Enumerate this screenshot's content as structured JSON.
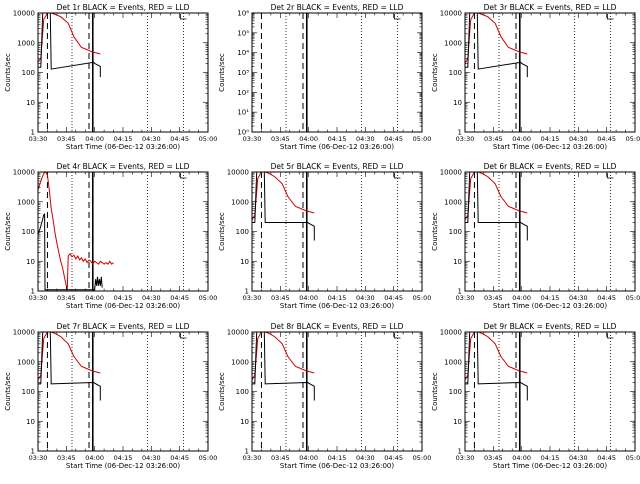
{
  "chart_data": {
    "type": "line",
    "layout": "3x3 grid",
    "x_tick_labels": [
      "03:30",
      "03:45",
      "04:00",
      "04:15",
      "04:30",
      "04:45",
      "05:00"
    ],
    "x_tick_minutes": [
      0,
      15,
      30,
      45,
      60,
      75,
      90
    ],
    "xlim_minutes": [
      0,
      90
    ],
    "xlabel": "Start Time (06-Dec-12 03:26:00)",
    "ylabel": "Counts/sec",
    "scale": "log",
    "series_colors": {
      "events": "#000000",
      "lld": "#cc0000"
    },
    "vlines": {
      "dashed": [
        5,
        27
      ],
      "dotted": [
        18,
        58,
        77
      ],
      "solid": [
        29
      ]
    },
    "panels": [
      {
        "title": "Det 1r BLACK = Events, RED = LLD",
        "ylim": [
          1,
          10000
        ],
        "y_tick_labels": [
          "1",
          "10",
          "100",
          "1000",
          "10000"
        ],
        "y_tick_values": [
          1,
          10,
          100,
          1000,
          10000
        ],
        "events": [
          [
            0,
            150
          ],
          [
            1.5,
            150
          ],
          [
            2.5,
            10000
          ],
          [
            3.5,
            10000
          ],
          [
            6.5,
            10000
          ],
          [
            7,
            130
          ],
          [
            29.5,
            220
          ],
          [
            30,
            200
          ],
          [
            33,
            160
          ],
          [
            33,
            70
          ]
        ],
        "lld": [
          [
            0,
            220
          ],
          [
            1.5,
            300
          ],
          [
            3,
            6000
          ],
          [
            5,
            10000
          ],
          [
            7,
            10000
          ],
          [
            9,
            9000
          ],
          [
            12,
            7500
          ],
          [
            16,
            4500
          ],
          [
            19,
            1600
          ],
          [
            23,
            700
          ],
          [
            27,
            550
          ],
          [
            29,
            480
          ],
          [
            30,
            470
          ],
          [
            33,
            420
          ]
        ]
      },
      {
        "title": "Det 2r BLACK = Events, RED = LLD",
        "ylim": [
          1,
          1000000
        ],
        "y_tick_labels": [
          "10⁰",
          "10¹",
          "10²",
          "10³",
          "10⁴",
          "10⁵",
          "10⁶"
        ],
        "y_tick_values": [
          1,
          10,
          100,
          1000,
          10000,
          100000,
          1000000
        ],
        "events": [],
        "lld": []
      },
      {
        "title": "Det 3r BLACK = Events, RED = LLD",
        "ylim": [
          1,
          10000
        ],
        "y_tick_labels": [
          "1",
          "10",
          "100",
          "1000",
          "10000"
        ],
        "y_tick_values": [
          1,
          10,
          100,
          1000,
          10000
        ],
        "events": [
          [
            0,
            150
          ],
          [
            1.5,
            150
          ],
          [
            2.5,
            10000
          ],
          [
            3.5,
            10000
          ],
          [
            6.5,
            10000
          ],
          [
            7,
            130
          ],
          [
            29.5,
            220
          ],
          [
            30,
            200
          ],
          [
            33,
            160
          ],
          [
            33,
            70
          ]
        ],
        "lld": [
          [
            0,
            200
          ],
          [
            1.5,
            300
          ],
          [
            3,
            6000
          ],
          [
            5,
            10000
          ],
          [
            7,
            10000
          ],
          [
            9,
            9000
          ],
          [
            12,
            7500
          ],
          [
            16,
            4500
          ],
          [
            19,
            1600
          ],
          [
            23,
            700
          ],
          [
            27,
            550
          ],
          [
            29,
            480
          ],
          [
            30,
            470
          ],
          [
            33,
            420
          ]
        ]
      },
      {
        "title": "Det 4r BLACK = Events, RED = LLD",
        "ylim": [
          1,
          10000
        ],
        "y_tick_labels": [
          "1",
          "10",
          "100",
          "1000",
          "10000"
        ],
        "y_tick_values": [
          1,
          10,
          100,
          1000,
          10000
        ],
        "events": [
          [
            0,
            80
          ],
          [
            1,
            120
          ],
          [
            2,
            200
          ],
          [
            3,
            350
          ],
          [
            3.5,
            400
          ],
          [
            3.7,
            1.1
          ],
          [
            30,
            1.1
          ],
          [
            30.5,
            2.5
          ],
          [
            31,
            1.5
          ],
          [
            31.5,
            3
          ],
          [
            32,
            1.5
          ],
          [
            32.5,
            2.5
          ],
          [
            33,
            1.5
          ],
          [
            33.5,
            3
          ],
          [
            34,
            1.3
          ]
        ],
        "lld": [
          [
            0,
            2500
          ],
          [
            1,
            4000
          ],
          [
            2,
            6000
          ],
          [
            3,
            9000
          ],
          [
            4,
            10000
          ],
          [
            5,
            8000
          ],
          [
            6,
            2500
          ],
          [
            7,
            600
          ],
          [
            8,
            250
          ],
          [
            9,
            90
          ],
          [
            10,
            40
          ],
          [
            11,
            20
          ],
          [
            12,
            10
          ],
          [
            13,
            6
          ],
          [
            14,
            3
          ],
          [
            15,
            1.5
          ],
          [
            15.5,
            1.1
          ],
          [
            16,
            15
          ],
          [
            17,
            18
          ],
          [
            18,
            14
          ],
          [
            19,
            16
          ],
          [
            20,
            12
          ],
          [
            21,
            15
          ],
          [
            22,
            11
          ],
          [
            23,
            13
          ],
          [
            24,
            10
          ],
          [
            25,
            12
          ],
          [
            26,
            9
          ],
          [
            27,
            11
          ],
          [
            28,
            10
          ],
          [
            29,
            8
          ],
          [
            30,
            10
          ],
          [
            31,
            9
          ],
          [
            32,
            8
          ],
          [
            33,
            10
          ],
          [
            34,
            9
          ],
          [
            35,
            8
          ],
          [
            36,
            9
          ],
          [
            37,
            8
          ],
          [
            38,
            10
          ],
          [
            39,
            8
          ],
          [
            40,
            9
          ]
        ]
      },
      {
        "title": "Det 5r BLACK = Events, RED = LLD",
        "ylim": [
          1,
          10000
        ],
        "y_tick_labels": [
          "1",
          "10",
          "100",
          "1000",
          "10000"
        ],
        "y_tick_values": [
          1,
          10,
          100,
          1000,
          10000
        ],
        "events": [
          [
            0,
            200
          ],
          [
            1.5,
            200
          ],
          [
            2.5,
            10000
          ],
          [
            3.5,
            10000
          ],
          [
            6.5,
            10000
          ],
          [
            7,
            200
          ],
          [
            29.5,
            200
          ],
          [
            30,
            190
          ],
          [
            33,
            150
          ],
          [
            33,
            50
          ]
        ],
        "lld": [
          [
            0,
            250
          ],
          [
            1.5,
            350
          ],
          [
            3,
            6000
          ],
          [
            5,
            10000
          ],
          [
            7,
            10000
          ],
          [
            9,
            9000
          ],
          [
            12,
            7000
          ],
          [
            16,
            4000
          ],
          [
            19,
            1500
          ],
          [
            23,
            700
          ],
          [
            27,
            550
          ],
          [
            29,
            480
          ],
          [
            30,
            470
          ],
          [
            33,
            420
          ]
        ]
      },
      {
        "title": "Det 6r BLACK = Events, RED = LLD",
        "ylim": [
          1,
          10000
        ],
        "y_tick_labels": [
          "1",
          "10",
          "100",
          "1000",
          "10000"
        ],
        "y_tick_values": [
          1,
          10,
          100,
          1000,
          10000
        ],
        "events": [
          [
            0,
            200
          ],
          [
            1.5,
            200
          ],
          [
            2.5,
            10000
          ],
          [
            3.5,
            10000
          ],
          [
            6.5,
            10000
          ],
          [
            7,
            200
          ],
          [
            29.5,
            200
          ],
          [
            30,
            190
          ],
          [
            33,
            150
          ],
          [
            33,
            50
          ]
        ],
        "lld": [
          [
            0,
            250
          ],
          [
            1.5,
            350
          ],
          [
            3,
            6000
          ],
          [
            5,
            10000
          ],
          [
            7,
            10000
          ],
          [
            9,
            9000
          ],
          [
            12,
            7000
          ],
          [
            16,
            4000
          ],
          [
            19,
            1500
          ],
          [
            23,
            700
          ],
          [
            27,
            550
          ],
          [
            29,
            480
          ],
          [
            30,
            470
          ],
          [
            33,
            420
          ]
        ]
      },
      {
        "title": "Det 7r BLACK = Events, RED = LLD",
        "ylim": [
          1,
          10000
        ],
        "y_tick_labels": [
          "1",
          "10",
          "100",
          "1000",
          "10000"
        ],
        "y_tick_values": [
          1,
          10,
          100,
          1000,
          10000
        ],
        "events": [
          [
            0,
            180
          ],
          [
            1.5,
            180
          ],
          [
            2.5,
            10000
          ],
          [
            3.5,
            10000
          ],
          [
            6.5,
            10000
          ],
          [
            7,
            180
          ],
          [
            29.5,
            200
          ],
          [
            30,
            190
          ],
          [
            33,
            150
          ],
          [
            33,
            50
          ]
        ],
        "lld": [
          [
            0,
            250
          ],
          [
            1.5,
            350
          ],
          [
            3,
            6000
          ],
          [
            5,
            10000
          ],
          [
            7,
            10000
          ],
          [
            9,
            9000
          ],
          [
            12,
            7000
          ],
          [
            16,
            4000
          ],
          [
            19,
            1500
          ],
          [
            23,
            700
          ],
          [
            27,
            550
          ],
          [
            29,
            480
          ],
          [
            30,
            470
          ],
          [
            33,
            420
          ]
        ]
      },
      {
        "title": "Det 8r BLACK = Events, RED = LLD",
        "ylim": [
          1,
          10000
        ],
        "y_tick_labels": [
          "1",
          "10",
          "100",
          "1000",
          "10000"
        ],
        "y_tick_values": [
          1,
          10,
          100,
          1000,
          10000
        ],
        "events": [
          [
            0,
            180
          ],
          [
            1.5,
            180
          ],
          [
            2.5,
            10000
          ],
          [
            3.5,
            10000
          ],
          [
            6.5,
            10000
          ],
          [
            7,
            180
          ],
          [
            29.5,
            200
          ],
          [
            30,
            190
          ],
          [
            33,
            150
          ],
          [
            33,
            50
          ]
        ],
        "lld": [
          [
            0,
            250
          ],
          [
            1.5,
            350
          ],
          [
            3,
            6000
          ],
          [
            5,
            10000
          ],
          [
            7,
            10000
          ],
          [
            9,
            9000
          ],
          [
            12,
            7000
          ],
          [
            16,
            4000
          ],
          [
            19,
            1500
          ],
          [
            23,
            700
          ],
          [
            27,
            550
          ],
          [
            29,
            480
          ],
          [
            30,
            470
          ],
          [
            33,
            420
          ]
        ]
      },
      {
        "title": "Det 9r BLACK = Events, RED = LLD",
        "ylim": [
          1,
          10000
        ],
        "y_tick_labels": [
          "1",
          "10",
          "100",
          "1000",
          "10000"
        ],
        "y_tick_values": [
          1,
          10,
          100,
          1000,
          10000
        ],
        "events": [
          [
            0,
            180
          ],
          [
            1.5,
            180
          ],
          [
            2.5,
            10000
          ],
          [
            3.5,
            10000
          ],
          [
            6.5,
            10000
          ],
          [
            7,
            180
          ],
          [
            29.5,
            200
          ],
          [
            30,
            190
          ],
          [
            33,
            150
          ],
          [
            33,
            50
          ]
        ],
        "lld": [
          [
            0,
            250
          ],
          [
            1.5,
            350
          ],
          [
            3,
            6000
          ],
          [
            5,
            10000
          ],
          [
            7,
            10000
          ],
          [
            9,
            9000
          ],
          [
            12,
            7000
          ],
          [
            16,
            4000
          ],
          [
            19,
            1500
          ],
          [
            23,
            700
          ],
          [
            27,
            550
          ],
          [
            29,
            480
          ],
          [
            30,
            470
          ],
          [
            33,
            420
          ]
        ]
      }
    ]
  }
}
